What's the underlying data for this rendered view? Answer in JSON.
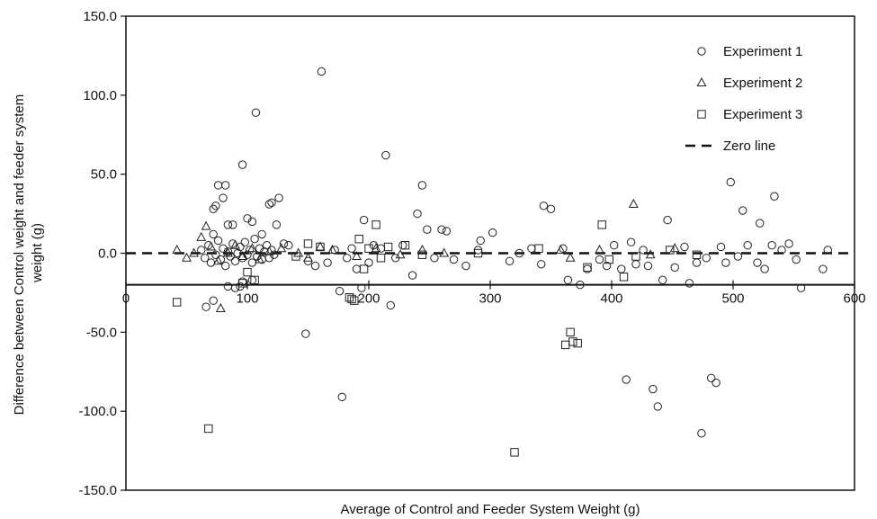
{
  "chart_data": {
    "type": "scatter",
    "xlabel": "Average of Control and Feeder System Weight (g)",
    "ylabel": "Difference between Control weight and feeder system weight (g)",
    "xlim": [
      0,
      600
    ],
    "ylim": [
      -150,
      150
    ],
    "x_ticks": [
      "0",
      "100",
      "200",
      "300",
      "400",
      "500",
      "600"
    ],
    "y_ticks": [
      "150.0",
      "100.0",
      "50.0",
      "0.0",
      "-50.0",
      "-100.0",
      "-150.0"
    ],
    "x_axis_crosses_at_y": -20,
    "grid": false,
    "legend_position": "top-right",
    "series": [
      {
        "name": "Experiment 1",
        "marker": "circle",
        "points": [
          [
            62,
            2
          ],
          [
            65,
            -3
          ],
          [
            68,
            5
          ],
          [
            70,
            -6
          ],
          [
            72,
            12
          ],
          [
            74,
            -1
          ],
          [
            76,
            8
          ],
          [
            78,
            -4
          ],
          [
            80,
            3
          ],
          [
            82,
            -8
          ],
          [
            84,
            1
          ],
          [
            86,
            -2
          ],
          [
            88,
            6
          ],
          [
            90,
            -5
          ],
          [
            92,
            0
          ],
          [
            94,
            4
          ],
          [
            96,
            -3
          ],
          [
            98,
            7
          ],
          [
            100,
            -1
          ],
          [
            102,
            2
          ],
          [
            104,
            -6
          ],
          [
            106,
            9
          ],
          [
            108,
            -2
          ],
          [
            110,
            3
          ],
          [
            112,
            -4
          ],
          [
            114,
            1
          ],
          [
            116,
            5
          ],
          [
            118,
            -3
          ],
          [
            120,
            2
          ],
          [
            122,
            -1
          ],
          [
            72,
            28
          ],
          [
            74,
            30
          ],
          [
            76,
            43
          ],
          [
            82,
            43
          ],
          [
            80,
            35
          ],
          [
            84,
            18
          ],
          [
            88,
            18
          ],
          [
            96,
            56
          ],
          [
            100,
            22
          ],
          [
            104,
            20
          ],
          [
            107,
            89
          ],
          [
            112,
            12
          ],
          [
            118,
            31
          ],
          [
            120,
            32
          ],
          [
            124,
            18
          ],
          [
            126,
            35
          ],
          [
            130,
            6
          ],
          [
            134,
            5
          ],
          [
            66,
            -34
          ],
          [
            72,
            -30
          ],
          [
            84,
            -21
          ],
          [
            90,
            -22
          ],
          [
            94,
            -21
          ],
          [
            96,
            -18
          ],
          [
            104,
            -17
          ],
          [
            148,
            -51
          ],
          [
            150,
            -5
          ],
          [
            156,
            -8
          ],
          [
            161,
            115
          ],
          [
            166,
            -6
          ],
          [
            172,
            2
          ],
          [
            176,
            -24
          ],
          [
            178,
            -91
          ],
          [
            182,
            -3
          ],
          [
            186,
            3
          ],
          [
            190,
            -10
          ],
          [
            194,
            -22
          ],
          [
            196,
            21
          ],
          [
            200,
            -6
          ],
          [
            204,
            5
          ],
          [
            210,
            3
          ],
          [
            214,
            62
          ],
          [
            218,
            -33
          ],
          [
            222,
            -3
          ],
          [
            228,
            5
          ],
          [
            236,
            -14
          ],
          [
            240,
            25
          ],
          [
            244,
            43
          ],
          [
            248,
            15
          ],
          [
            254,
            -3
          ],
          [
            260,
            15
          ],
          [
            264,
            14
          ],
          [
            270,
            -4
          ],
          [
            280,
            -8
          ],
          [
            290,
            2
          ],
          [
            292,
            8
          ],
          [
            302,
            13
          ],
          [
            316,
            -5
          ],
          [
            324,
            0
          ],
          [
            334,
            3
          ],
          [
            342,
            -7
          ],
          [
            344,
            30
          ],
          [
            350,
            28
          ],
          [
            360,
            3
          ],
          [
            364,
            -17
          ],
          [
            374,
            -20
          ],
          [
            380,
            -10
          ],
          [
            390,
            -4
          ],
          [
            396,
            -8
          ],
          [
            402,
            5
          ],
          [
            408,
            -10
          ],
          [
            412,
            -80
          ],
          [
            416,
            7
          ],
          [
            420,
            -7
          ],
          [
            426,
            2
          ],
          [
            430,
            -8
          ],
          [
            434,
            -86
          ],
          [
            438,
            -97
          ],
          [
            442,
            -17
          ],
          [
            446,
            21
          ],
          [
            452,
            -9
          ],
          [
            460,
            4
          ],
          [
            464,
            -19
          ],
          [
            470,
            -6
          ],
          [
            474,
            -114
          ],
          [
            478,
            -3
          ],
          [
            482,
            -79
          ],
          [
            486,
            -82
          ],
          [
            490,
            4
          ],
          [
            494,
            -6
          ],
          [
            498,
            45
          ],
          [
            504,
            -2
          ],
          [
            508,
            27
          ],
          [
            512,
            5
          ],
          [
            520,
            -6
          ],
          [
            522,
            19
          ],
          [
            526,
            -10
          ],
          [
            532,
            5
          ],
          [
            534,
            36
          ],
          [
            540,
            2
          ],
          [
            546,
            6
          ],
          [
            552,
            -4
          ],
          [
            556,
            -22
          ],
          [
            574,
            -10
          ],
          [
            578,
            2
          ]
        ]
      },
      {
        "name": "Experiment 2",
        "marker": "triangle",
        "points": [
          [
            42,
            2
          ],
          [
            50,
            -3
          ],
          [
            56,
            0
          ],
          [
            62,
            10
          ],
          [
            66,
            17
          ],
          [
            70,
            4
          ],
          [
            76,
            -5
          ],
          [
            78,
            -35
          ],
          [
            84,
            0
          ],
          [
            90,
            5
          ],
          [
            96,
            -2
          ],
          [
            104,
            3
          ],
          [
            110,
            -4
          ],
          [
            118,
            1
          ],
          [
            128,
            3
          ],
          [
            142,
            0
          ],
          [
            150,
            -3
          ],
          [
            160,
            4
          ],
          [
            170,
            2
          ],
          [
            190,
            -2
          ],
          [
            206,
            3
          ],
          [
            226,
            -1
          ],
          [
            244,
            2
          ],
          [
            262,
            0
          ],
          [
            358,
            2
          ],
          [
            366,
            -3
          ],
          [
            390,
            2
          ],
          [
            418,
            31
          ],
          [
            432,
            -1
          ],
          [
            452,
            3
          ]
        ]
      },
      {
        "name": "Experiment 3",
        "marker": "square",
        "points": [
          [
            42,
            -31
          ],
          [
            68,
            -111
          ],
          [
            96,
            -19
          ],
          [
            100,
            -12
          ],
          [
            106,
            -17
          ],
          [
            140,
            -2
          ],
          [
            150,
            6
          ],
          [
            160,
            4
          ],
          [
            184,
            -28
          ],
          [
            186,
            -29
          ],
          [
            188,
            -30
          ],
          [
            192,
            9
          ],
          [
            196,
            -10
          ],
          [
            200,
            3
          ],
          [
            206,
            18
          ],
          [
            210,
            -3
          ],
          [
            216,
            4
          ],
          [
            230,
            5
          ],
          [
            244,
            -1
          ],
          [
            290,
            0
          ],
          [
            320,
            -126
          ],
          [
            340,
            3
          ],
          [
            362,
            -58
          ],
          [
            366,
            -50
          ],
          [
            368,
            -56
          ],
          [
            372,
            -57
          ],
          [
            380,
            -9
          ],
          [
            392,
            18
          ],
          [
            398,
            -4
          ],
          [
            410,
            -15
          ],
          [
            420,
            -2
          ],
          [
            448,
            2
          ],
          [
            470,
            -1
          ]
        ]
      },
      {
        "name": "Zero line",
        "marker": "dashed-line",
        "y": 0
      }
    ]
  }
}
